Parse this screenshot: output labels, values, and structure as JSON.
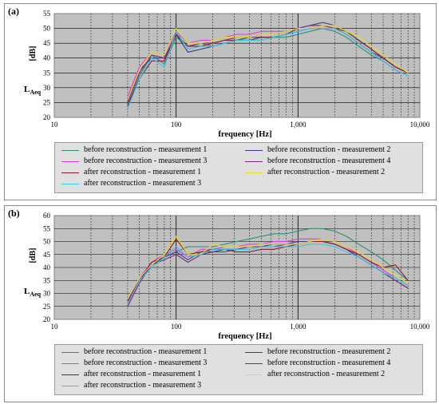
{
  "chart_data": [
    {
      "type": "line",
      "panel_label": "(a)",
      "xlabel": "frequency   [Hz]",
      "ylabel_main": "L",
      "ylabel_sub": "Aeq",
      "ylabel_unit": "[dB]",
      "x_scale": "log",
      "xlim": [
        10,
        10000
      ],
      "ylim": [
        20,
        55
      ],
      "y_ticks": [
        20,
        25,
        30,
        35,
        40,
        45,
        50,
        55
      ],
      "x_tick_labels": [
        {
          "value": 10,
          "label": "10"
        },
        {
          "value": 100,
          "label": "100"
        },
        {
          "value": 1000,
          "label": "1,000"
        },
        {
          "value": 10000,
          "label": "10,000"
        }
      ],
      "grid": true,
      "plot_background": "#c0c0c0",
      "legend_position": "bottom",
      "x": [
        40,
        50,
        63,
        80,
        100,
        125,
        160,
        200,
        250,
        315,
        400,
        500,
        630,
        800,
        1000,
        1250,
        1600,
        2000,
        2500,
        3150,
        4000,
        5000,
        6300,
        8000
      ],
      "series": [
        {
          "name": "before reconstruction - measurement 1",
          "color": "#2f8f72",
          "values": [
            24,
            34,
            41,
            38,
            47,
            44,
            45,
            44,
            45,
            46,
            46,
            46,
            47,
            47,
            48,
            49,
            50,
            49,
            47,
            44,
            41,
            39,
            36,
            34
          ]
        },
        {
          "name": "before reconstruction - measurement 2",
          "color": "#3a3a80",
          "values": [
            26,
            36,
            40,
            40,
            48,
            42,
            43,
            44,
            45,
            46,
            47,
            47,
            47,
            48,
            50,
            51,
            52,
            51,
            49,
            46,
            43,
            40,
            37,
            35
          ]
        },
        {
          "name": "before reconstruction - measurement 3",
          "color": "#e23ce2",
          "values": [
            27,
            37,
            42,
            41,
            49,
            45,
            46,
            46,
            47,
            48,
            48,
            49,
            49,
            49,
            50,
            50,
            51,
            50,
            48,
            45,
            42,
            39,
            36,
            34
          ]
        },
        {
          "name": "before reconstruction - measurement 4",
          "color": "#7a2a80",
          "values": [
            25,
            35,
            41,
            40,
            48,
            44,
            45,
            45,
            46,
            47,
            47,
            48,
            48,
            49,
            50,
            51,
            51,
            50,
            48,
            45,
            42,
            40,
            37,
            35
          ]
        },
        {
          "name": "after  reconstruction - measurement 1",
          "color": "#8a1a30",
          "values": [
            24,
            33,
            39,
            39,
            48,
            44,
            44,
            45,
            46,
            46,
            46,
            47,
            47,
            48,
            49,
            50,
            50,
            50,
            49,
            46,
            43,
            40,
            37,
            35
          ]
        },
        {
          "name": "after  reconstruction - measurement 2",
          "color": "#e8e020",
          "values": [
            26,
            36,
            42,
            41,
            50,
            45,
            45,
            46,
            47,
            47,
            47,
            48,
            48,
            49,
            50,
            50,
            51,
            51,
            49,
            47,
            44,
            41,
            38,
            35
          ]
        },
        {
          "name": "after  reconstruction - measurement 3",
          "color": "#2ec8e8",
          "values": [
            23,
            33,
            40,
            37,
            49,
            43,
            44,
            44,
            45,
            46,
            46,
            46,
            47,
            48,
            49,
            50,
            50,
            50,
            48,
            45,
            42,
            39,
            36,
            34
          ]
        }
      ]
    },
    {
      "type": "line",
      "panel_label": "(b)",
      "xlabel": "frequency   [Hz]",
      "ylabel_main": "L",
      "ylabel_sub": "Aeq",
      "ylabel_unit": "[dB]",
      "x_scale": "log",
      "xlim": [
        10,
        10000
      ],
      "ylim": [
        20,
        60
      ],
      "y_ticks": [
        20,
        25,
        30,
        35,
        40,
        45,
        50,
        55,
        60
      ],
      "x_tick_labels": [
        {
          "value": 10,
          "label": "10"
        },
        {
          "value": 100,
          "label": "100"
        },
        {
          "value": 1000,
          "label": "1,000"
        },
        {
          "value": 10000,
          "label": "10,000"
        }
      ],
      "grid": true,
      "plot_background": "#c0c0c0",
      "legend_position": "bottom",
      "x": [
        40,
        50,
        63,
        80,
        100,
        125,
        160,
        200,
        250,
        315,
        400,
        500,
        630,
        800,
        1000,
        1250,
        1600,
        2000,
        2500,
        3150,
        4000,
        5000,
        6300,
        8000
      ],
      "series": [
        {
          "name": "before reconstruction - measurement 1",
          "color": "#2f8f72",
          "values": [
            28,
            36,
            42,
            44,
            46,
            48,
            48,
            48,
            49,
            50,
            51,
            52,
            53,
            53,
            54,
            55,
            55,
            54,
            52,
            49,
            46,
            43,
            39,
            35
          ]
        },
        {
          "name": "before reconstruction - measurement 2",
          "color": "#3a3a80",
          "values": [
            26,
            35,
            41,
            44,
            46,
            43,
            46,
            46,
            47,
            47,
            48,
            48,
            49,
            49,
            50,
            50,
            50,
            49,
            47,
            44,
            41,
            38,
            35,
            32
          ]
        },
        {
          "name": "before reconstruction - measurement 3",
          "color": "#e23ce2",
          "values": [
            27,
            36,
            42,
            45,
            47,
            44,
            47,
            47,
            48,
            48,
            49,
            49,
            50,
            50,
            51,
            51,
            51,
            50,
            48,
            45,
            42,
            39,
            36,
            33
          ]
        },
        {
          "name": "before reconstruction - measurement 4",
          "color": "#7a2a80",
          "values": [
            25,
            34,
            41,
            43,
            45,
            42,
            45,
            46,
            46,
            47,
            48,
            48,
            48,
            49,
            49,
            50,
            50,
            49,
            47,
            44,
            41,
            38,
            35,
            32
          ]
        },
        {
          "name": "after  reconstruction - measurement 1",
          "color": "#8a1a30",
          "values": [
            27,
            35,
            42,
            44,
            51,
            45,
            46,
            47,
            47,
            46,
            46,
            47,
            47,
            48,
            49,
            50,
            50,
            49,
            47,
            45,
            42,
            40,
            41,
            35
          ]
        },
        {
          "name": "after  reconstruction - measurement 2",
          "color": "#e8e020",
          "values": [
            28,
            36,
            41,
            45,
            52,
            45,
            45,
            49,
            48,
            48,
            48,
            49,
            49,
            49,
            49,
            50,
            51,
            50,
            48,
            46,
            43,
            40,
            37,
            34
          ]
        },
        {
          "name": "after  reconstruction - measurement 3",
          "color": "#2ec8e8",
          "values": [
            26,
            35,
            40,
            44,
            48,
            44,
            45,
            47,
            47,
            47,
            47,
            48,
            48,
            48,
            48,
            49,
            49,
            48,
            46,
            44,
            41,
            38,
            36,
            33
          ]
        }
      ]
    }
  ]
}
